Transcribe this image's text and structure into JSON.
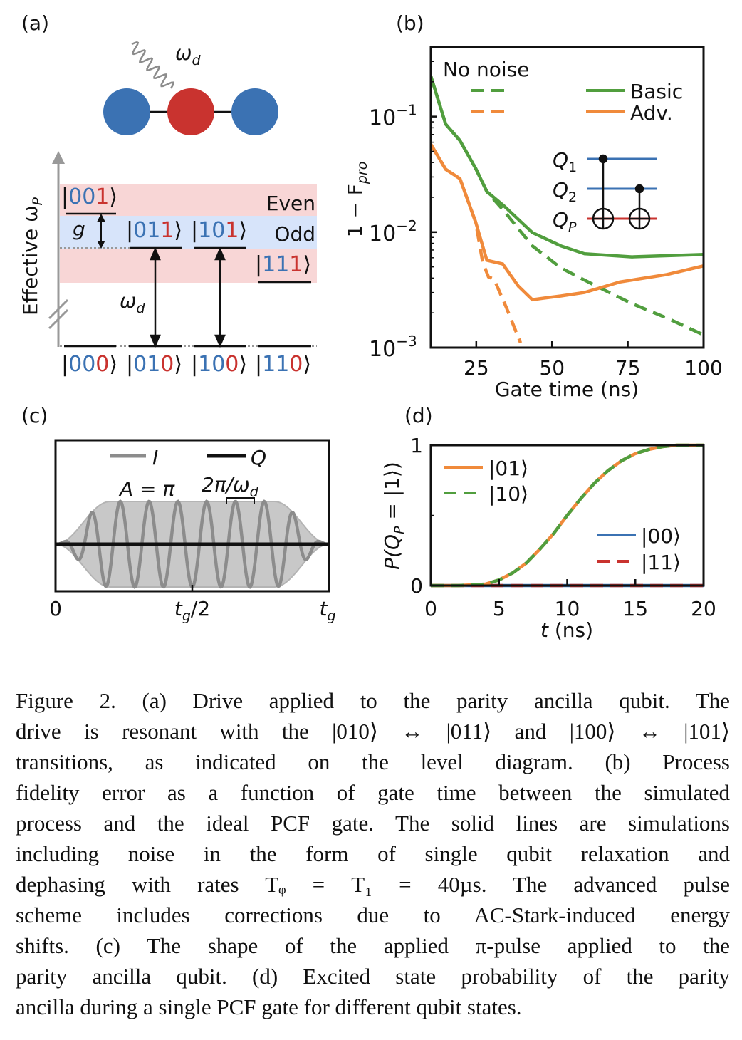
{
  "colors": {
    "blue": "#3b72b3",
    "red": "#c9332f",
    "green": "#519e3e",
    "orange": "#f08a3b",
    "grey": "#8c8c8c",
    "pink_band": "#f8d6d6",
    "blue_band": "#d7e4fa"
  },
  "panel_a": {
    "label": "(a)",
    "drive": {
      "main": "ω",
      "sub": "d"
    },
    "axis_label": {
      "main": "Effective ω",
      "sub": "P"
    },
    "g_label": "g",
    "even_label": "Even",
    "odd_label": "Odd",
    "transition_label": {
      "main": "ω",
      "sub": "d"
    },
    "excited_kets": [
      "001",
      "011",
      "101",
      "111"
    ],
    "ground_kets": [
      "000",
      "010",
      "100",
      "110"
    ]
  },
  "chart_data": [
    {
      "panel": "(b)",
      "type": "line",
      "xlabel": "Gate time (ns)",
      "ylabel": {
        "main": "1 − F",
        "sub": "pro"
      },
      "xlim": [
        10,
        100
      ],
      "ylim": [
        0.001,
        0.4
      ],
      "yscale": "log",
      "xticks": [
        "25",
        "50",
        "75",
        "100"
      ],
      "xtick_values": [
        25,
        50,
        75,
        100
      ],
      "yticks": [
        {
          "base": "10",
          "exp": "−1",
          "value": 0.1
        },
        {
          "base": "10",
          "exp": "−2",
          "value": 0.01
        },
        {
          "base": "10",
          "exp": "−3",
          "value": 0.001
        }
      ],
      "legend": {
        "title": "No noise",
        "entries": [
          "Basic",
          "Adv."
        ],
        "placement": "top-right"
      },
      "series": [
        {
          "name": "Basic",
          "style": "solid",
          "color": "green",
          "x": [
            10,
            14.9,
            19.6,
            24.8,
            28.5,
            34.1,
            43.5,
            52.9,
            60.7,
            76.4,
            100
          ],
          "y": [
            0.224,
            0.086,
            0.062,
            0.0356,
            0.0224,
            0.0169,
            0.0099,
            0.0076,
            0.0065,
            0.0061,
            0.0064
          ]
        },
        {
          "name": "Basic (no noise)",
          "style": "dashed",
          "color": "green",
          "x": [
            10,
            14.9,
            19.6,
            24.8,
            28.5,
            34.1,
            43.5,
            52.9,
            64.7,
            76.4,
            88,
            100
          ],
          "y": [
            0.224,
            0.086,
            0.062,
            0.0356,
            0.0224,
            0.0153,
            0.0076,
            0.0049,
            0.0034,
            0.0024,
            0.0018,
            0.00129
          ]
        },
        {
          "name": "Adv.",
          "style": "solid",
          "color": "orange",
          "x": [
            10,
            14.9,
            19.6,
            24.8,
            28.5,
            33.7,
            38.9,
            43.5,
            48.2,
            52.9,
            60.7,
            72.4,
            88,
            100
          ],
          "y": [
            0.0576,
            0.035,
            0.029,
            0.0122,
            0.0057,
            0.0053,
            0.0034,
            0.0026,
            0.0027,
            0.0028,
            0.003,
            0.0037,
            0.0043,
            0.0051
          ]
        },
        {
          "name": "Adv. (no noise)",
          "style": "dashed",
          "color": "orange",
          "x": [
            10,
            14.9,
            19.6,
            24.8,
            27.1,
            29,
            30.9,
            35,
            39.6
          ],
          "y": [
            0.0576,
            0.035,
            0.029,
            0.0122,
            0.0055,
            0.0041,
            0.0039,
            0.0022,
            0.0011
          ]
        }
      ],
      "inset_circuit": {
        "qubits": [
          {
            "main": "Q",
            "sub": "1"
          },
          {
            "main": "Q",
            "sub": "2"
          },
          {
            "main": "Q",
            "sub": "P"
          }
        ]
      }
    },
    {
      "panel": "(c)",
      "type": "line",
      "legend": {
        "entries": [
          "I",
          "Q"
        ],
        "placement": "top"
      },
      "annotations": [
        "A = π",
        {
          "main": "2π/ω",
          "sub": "d"
        }
      ],
      "xticks": [
        {
          "main": "0",
          "sub": ""
        },
        {
          "main": "t",
          "sub": "g",
          "tail": "/2"
        },
        {
          "main": "t",
          "sub": "g",
          "tail": ""
        }
      ],
      "cycles": 9.5
    },
    {
      "panel": "(d)",
      "type": "line",
      "xlabel": {
        "main": "t",
        "tail": " (ns)"
      },
      "ylabel": {
        "main": "P(Q",
        "sub": "P",
        "tail": " = |1⟩)"
      },
      "xlim": [
        0,
        20
      ],
      "ylim": [
        0,
        1
      ],
      "xticks": [
        "0",
        "5",
        "10",
        "15",
        "20"
      ],
      "xtick_values": [
        0,
        5,
        10,
        15,
        20
      ],
      "yticks": [
        "0",
        "1"
      ],
      "ytick_values": [
        0,
        1
      ],
      "series": [
        {
          "name": "|01⟩",
          "style": "solid",
          "color": "orange",
          "x": [
            0,
            2,
            4,
            5,
            6,
            7,
            8,
            9,
            10,
            11,
            12,
            13,
            14,
            15,
            16,
            17,
            18,
            19,
            20
          ],
          "y": [
            0,
            0,
            0.01,
            0.04,
            0.09,
            0.16,
            0.26,
            0.37,
            0.5,
            0.62,
            0.73,
            0.82,
            0.89,
            0.94,
            0.97,
            0.99,
            1,
            1,
            1
          ]
        },
        {
          "name": "|10⟩",
          "style": "dashed",
          "color": "green",
          "x": [
            0,
            2,
            4,
            5,
            6,
            7,
            8,
            9,
            10,
            11,
            12,
            13,
            14,
            15,
            16,
            17,
            18,
            19,
            20
          ],
          "y": [
            0,
            0,
            0.01,
            0.04,
            0.09,
            0.16,
            0.26,
            0.37,
            0.5,
            0.62,
            0.73,
            0.82,
            0.89,
            0.94,
            0.97,
            0.99,
            1,
            1,
            1
          ]
        },
        {
          "name": "|00⟩",
          "style": "solid",
          "color": "blue",
          "x": [
            0,
            5,
            10,
            15,
            20
          ],
          "y": [
            0,
            0,
            0,
            0,
            0
          ]
        },
        {
          "name": "|11⟩",
          "style": "dashed",
          "color": "red",
          "x": [
            0,
            5,
            10,
            15,
            20
          ],
          "y": [
            0,
            0,
            0,
            0,
            0
          ]
        }
      ]
    }
  ],
  "caption": {
    "lines": [
      "Figure 2.   (a) Drive applied to the parity ancilla qubit. The",
      "drive is resonant with the |010⟩ ↔ |011⟩ and |100⟩ ↔ |101⟩",
      "transitions, as indicated on the level diagram.  (b) Process",
      "fidelity error as a function of gate time between the simulated",
      "process and the ideal PCF gate. The solid lines are simulations",
      "including noise in the form of single qubit relaxation and",
      "dephasing with rates Tᵩ = T₁ = 40µs. The advanced pulse",
      "scheme includes corrections due to AC-Stark-induced energy",
      "shifts.  (c) The shape of the applied π-pulse applied to the",
      "parity ancilla qubit. (d) Excited state probability of the parity",
      "ancilla during a single PCF gate for different qubit states."
    ]
  }
}
